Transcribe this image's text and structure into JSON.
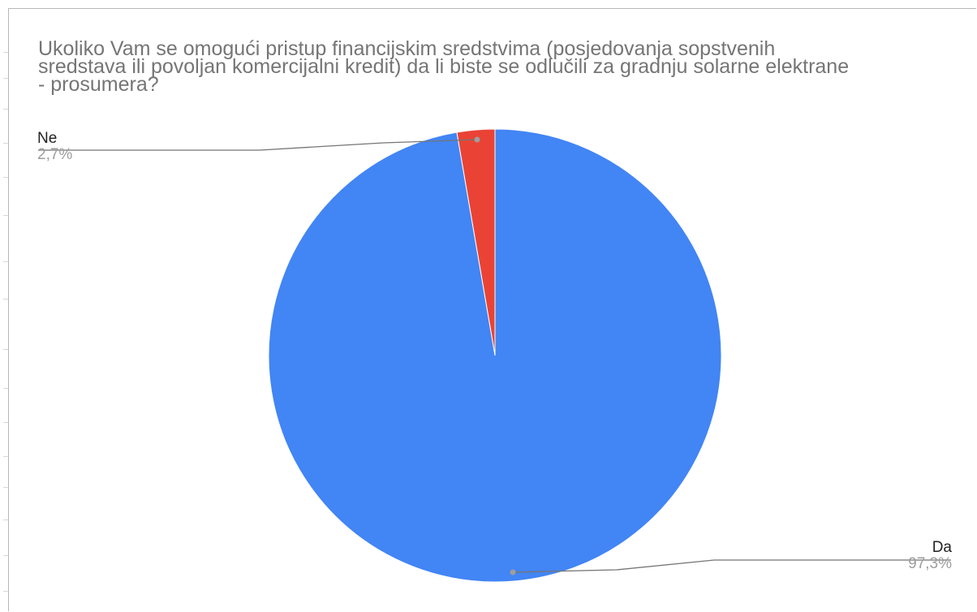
{
  "chart_data": {
    "type": "pie",
    "title": "Ukoliko Vam se omogući pristup financijskim sredstvima (posjedovanja sopstvenih\nsredstava ili povoljan komercijalni kredit) da li biste se odlučili za gradnju solarne elektrane\n- prosumera?",
    "slices": [
      {
        "label": "Ne",
        "value": 2.7,
        "percent_label": "2,7%",
        "color": "#ea4335"
      },
      {
        "label": "Da",
        "value": 97.3,
        "percent_label": "97,3%",
        "color": "#4285f4"
      }
    ],
    "start": "12 o'clock",
    "direction": "counter-clockwise",
    "legend": "callout labels"
  }
}
